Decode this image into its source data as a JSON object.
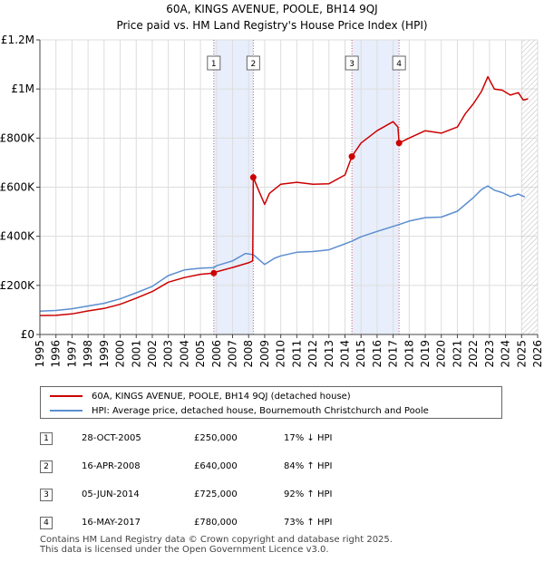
{
  "title": {
    "line1": "60A, KINGS AVENUE, POOLE, BH14 9QJ",
    "line2": "Price paid vs. HM Land Registry's House Price Index (HPI)"
  },
  "chart_data": {
    "type": "line",
    "xlim": [
      1995,
      2026
    ],
    "ylim": [
      0,
      1200000
    ],
    "y_ticks": [
      {
        "value": 0,
        "label": "£0"
      },
      {
        "value": 200000,
        "label": "£200K"
      },
      {
        "value": 400000,
        "label": "£400K"
      },
      {
        "value": 600000,
        "label": "£600K"
      },
      {
        "value": 800000,
        "label": "£800K"
      },
      {
        "value": 1000000,
        "label": "£1M"
      },
      {
        "value": 1200000,
        "label": "£1.2M"
      }
    ],
    "x_ticks": [
      "1995",
      "1996",
      "1997",
      "1998",
      "1999",
      "2000",
      "2001",
      "2002",
      "2003",
      "2004",
      "2005",
      "2006",
      "2007",
      "2008",
      "2009",
      "2010",
      "2011",
      "2012",
      "2013",
      "2014",
      "2015",
      "2016",
      "2017",
      "2018",
      "2019",
      "2020",
      "2021",
      "2022",
      "2023",
      "2024",
      "2025",
      "2026"
    ],
    "grid": true,
    "shaded_periods": [
      [
        2005.83,
        2008.29
      ],
      [
        2014.43,
        2017.37
      ]
    ],
    "hatched_from": 2025.0,
    "series": [
      {
        "name": "60A, KINGS AVENUE, POOLE, BH14 9QJ (detached house)",
        "color": "#cc0000",
        "points": [
          [
            1995,
            77000
          ],
          [
            1996,
            78000
          ],
          [
            1997,
            84000
          ],
          [
            1998,
            96000
          ],
          [
            1999,
            106000
          ],
          [
            2000,
            123000
          ],
          [
            2001,
            148000
          ],
          [
            2002,
            175000
          ],
          [
            2003,
            213000
          ],
          [
            2004,
            232000
          ],
          [
            2005,
            245000
          ],
          [
            2005.83,
            250000
          ],
          [
            2006,
            255000
          ],
          [
            2007,
            273000
          ],
          [
            2008.0,
            292000
          ],
          [
            2008.25,
            300000
          ],
          [
            2008.29,
            640000
          ],
          [
            2008.6,
            590000
          ],
          [
            2009.0,
            530000
          ],
          [
            2009.3,
            575000
          ],
          [
            2010,
            612000
          ],
          [
            2011,
            620000
          ],
          [
            2012,
            612000
          ],
          [
            2013,
            614000
          ],
          [
            2014.0,
            650000
          ],
          [
            2014.43,
            725000
          ],
          [
            2015,
            780000
          ],
          [
            2016,
            830000
          ],
          [
            2017.0,
            867000
          ],
          [
            2017.3,
            845000
          ],
          [
            2017.37,
            780000
          ],
          [
            2018,
            800000
          ],
          [
            2019,
            830000
          ],
          [
            2020,
            820000
          ],
          [
            2021,
            845000
          ],
          [
            2021.5,
            900000
          ],
          [
            2022,
            940000
          ],
          [
            2022.5,
            990000
          ],
          [
            2022.9,
            1050000
          ],
          [
            2023.3,
            1000000
          ],
          [
            2023.8,
            995000
          ],
          [
            2024.3,
            975000
          ],
          [
            2024.8,
            985000
          ],
          [
            2025.1,
            955000
          ],
          [
            2025.4,
            960000
          ]
        ]
      },
      {
        "name": "HPI: Average price, detached house, Bournemouth Christchurch and Poole",
        "color": "#5b8ed0",
        "points": [
          [
            1995,
            95000
          ],
          [
            1996,
            98000
          ],
          [
            1997,
            105000
          ],
          [
            1998,
            116000
          ],
          [
            1999,
            127000
          ],
          [
            2000,
            145000
          ],
          [
            2001,
            170000
          ],
          [
            2002,
            196000
          ],
          [
            2003,
            240000
          ],
          [
            2004,
            263000
          ],
          [
            2005,
            270000
          ],
          [
            2005.83,
            272000
          ],
          [
            2006,
            280000
          ],
          [
            2007,
            300000
          ],
          [
            2007.8,
            330000
          ],
          [
            2008.3,
            325000
          ],
          [
            2009.0,
            285000
          ],
          [
            2009.6,
            310000
          ],
          [
            2010,
            320000
          ],
          [
            2011,
            335000
          ],
          [
            2012,
            338000
          ],
          [
            2013,
            345000
          ],
          [
            2014.43,
            380000
          ],
          [
            2015,
            398000
          ],
          [
            2016,
            420000
          ],
          [
            2017.37,
            448000
          ],
          [
            2018,
            462000
          ],
          [
            2019,
            476000
          ],
          [
            2020,
            478000
          ],
          [
            2021,
            502000
          ],
          [
            2021.5,
            530000
          ],
          [
            2022,
            558000
          ],
          [
            2022.5,
            590000
          ],
          [
            2022.9,
            605000
          ],
          [
            2023.3,
            588000
          ],
          [
            2023.8,
            578000
          ],
          [
            2024.3,
            562000
          ],
          [
            2024.8,
            572000
          ],
          [
            2025.2,
            560000
          ]
        ]
      }
    ],
    "sales": [
      {
        "id": "1",
        "x": 2005.83,
        "y": 250000
      },
      {
        "id": "2",
        "x": 2008.29,
        "y": 640000
      },
      {
        "id": "3",
        "x": 2014.43,
        "y": 725000
      },
      {
        "id": "4",
        "x": 2017.37,
        "y": 780000
      }
    ]
  },
  "legend": {
    "entries": [
      {
        "label": "60A, KINGS AVENUE, POOLE, BH14 9QJ (detached house)",
        "color": "#cc0000"
      },
      {
        "label": "HPI: Average price, detached house, Bournemouth Christchurch and Poole",
        "color": "#5b8ed0"
      }
    ]
  },
  "sales_table": [
    {
      "id": "1",
      "date": "28-OCT-2005",
      "price": "£250,000",
      "hpi": "17% ↓ HPI"
    },
    {
      "id": "2",
      "date": "16-APR-2008",
      "price": "£640,000",
      "hpi": "84% ↑ HPI"
    },
    {
      "id": "3",
      "date": "05-JUN-2014",
      "price": "£725,000",
      "hpi": "92% ↑ HPI"
    },
    {
      "id": "4",
      "date": "16-MAY-2017",
      "price": "£780,000",
      "hpi": "73% ↑ HPI"
    }
  ],
  "footer": {
    "line1": "Contains HM Land Registry data © Crown copyright and database right 2025.",
    "line2": "This data is licensed under the Open Government Licence v3.0."
  }
}
